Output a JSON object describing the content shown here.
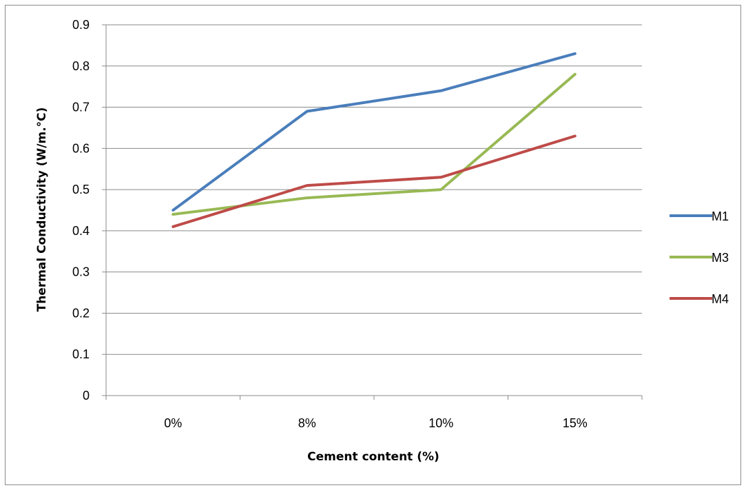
{
  "chart_data": {
    "type": "line",
    "title": "",
    "xlabel": "Cement content (%)",
    "ylabel": "Thermal Conductivity (W/m.°C)",
    "categories": [
      "0%",
      "8%",
      "10%",
      "15%"
    ],
    "ylim": [
      0,
      0.9
    ],
    "yticks": [
      "0",
      "0.1",
      "0.2",
      "0.3",
      "0.4",
      "0.5",
      "0.6",
      "0.7",
      "0.8",
      "0.9"
    ],
    "grid": true,
    "legend_position": "right",
    "series": [
      {
        "name": "M1",
        "color": "#4a7ebb",
        "values": [
          0.45,
          0.69,
          0.74,
          0.83
        ]
      },
      {
        "name": "M3",
        "color": "#98b954",
        "values": [
          0.44,
          0.48,
          0.5,
          0.78
        ]
      },
      {
        "name": "M4",
        "color": "#be4b48",
        "values": [
          0.41,
          0.51,
          0.53,
          0.63
        ]
      }
    ]
  }
}
